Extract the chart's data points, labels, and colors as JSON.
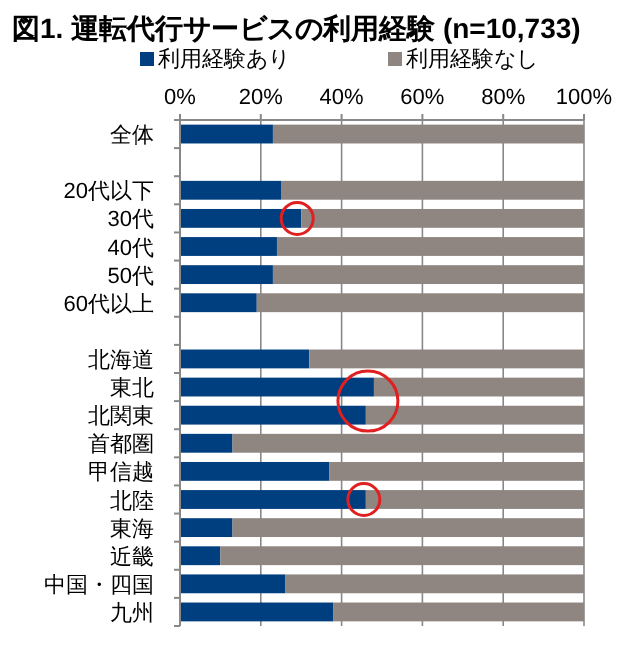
{
  "chart_data": {
    "type": "bar",
    "orientation": "horizontal",
    "stacked": true,
    "title": "図1. 運転代行サービスの利用経験 (n=10,733)",
    "categories": [
      "全体",
      null,
      "20代以下",
      "30代",
      "40代",
      "50代",
      "60代以上",
      null,
      "北海道",
      "東北",
      "北関東",
      "首都圏",
      "甲信越",
      "北陸",
      "東海",
      "近畿",
      "中国・四国",
      "九州"
    ],
    "series": [
      {
        "name": "利用経験あり",
        "color": "#003f7f",
        "values": [
          23,
          null,
          25,
          30,
          24,
          23,
          19,
          null,
          32,
          48,
          46,
          13,
          37,
          46,
          13,
          10,
          26,
          38
        ]
      },
      {
        "name": "利用経験なし",
        "color": "#8f8681",
        "values": [
          77,
          null,
          75,
          70,
          76,
          77,
          81,
          null,
          68,
          52,
          54,
          87,
          63,
          54,
          87,
          90,
          74,
          62
        ]
      }
    ],
    "xlim": [
      0,
      100
    ],
    "xticks": [
      {
        "value": 0,
        "label": "0%"
      },
      {
        "value": 20,
        "label": "20%"
      },
      {
        "value": 40,
        "label": "40%"
      },
      {
        "value": 60,
        "label": "60%"
      },
      {
        "value": 80,
        "label": "80%"
      },
      {
        "value": 100,
        "label": "100%"
      }
    ],
    "grid": "x",
    "legend": "top"
  }
}
